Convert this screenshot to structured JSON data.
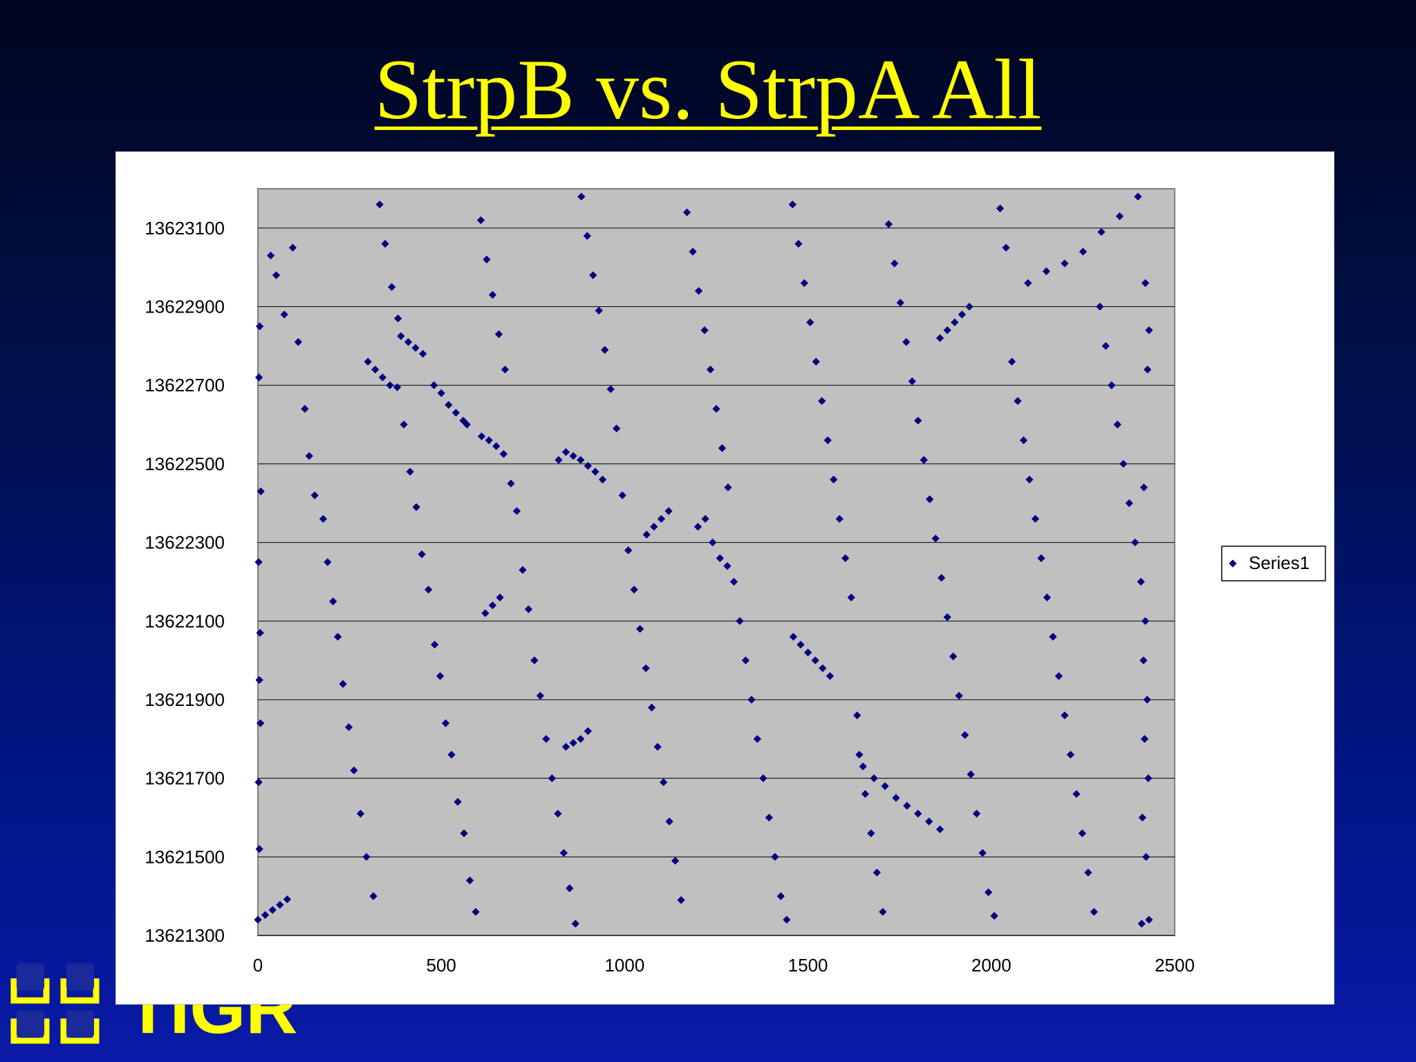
{
  "slide": {
    "title": "StrpB vs. StrpA All"
  },
  "logo": {
    "text": "TIGR"
  },
  "colors": {
    "title": "#ffff00",
    "plot_area": "#c0c0c0",
    "marker": "#000080",
    "gridline": "#000000"
  },
  "chart_data": {
    "type": "scatter",
    "title": "",
    "xlabel": "",
    "ylabel": "",
    "xlim": [
      0,
      2500
    ],
    "ylim": [
      13621300,
      13623200
    ],
    "x_ticks": [
      "0",
      "500",
      "1000",
      "1500",
      "2000",
      "2500"
    ],
    "y_ticks": [
      "13621300",
      "13621500",
      "13621700",
      "13621900",
      "13622100",
      "13622300",
      "13622500",
      "13622700",
      "13622900",
      "13623100"
    ],
    "grid": "horizontal major gridlines",
    "legend": {
      "position": "right",
      "entries": [
        "Series1"
      ]
    },
    "marker": "diamond",
    "series": [
      {
        "name": "Series1",
        "points": [
          [
            0,
            13621340
          ],
          [
            20,
            13621352
          ],
          [
            40,
            13621365
          ],
          [
            60,
            13621378
          ],
          [
            80,
            13621392
          ],
          [
            300,
            13622760
          ],
          [
            320,
            13622740
          ],
          [
            340,
            13622720
          ],
          [
            360,
            13622700
          ],
          [
            380,
            13622695
          ],
          [
            390,
            13622825
          ],
          [
            410,
            13622810
          ],
          [
            430,
            13622795
          ],
          [
            450,
            13622780
          ],
          [
            480,
            13622700
          ],
          [
            500,
            13622680
          ],
          [
            520,
            13622650
          ],
          [
            540,
            13622630
          ],
          [
            560,
            13622610
          ],
          [
            570,
            13622600
          ],
          [
            610,
            13622570
          ],
          [
            630,
            13622560
          ],
          [
            650,
            13622545
          ],
          [
            670,
            13622525
          ],
          [
            820,
            13622510
          ],
          [
            840,
            13622530
          ],
          [
            860,
            13622520
          ],
          [
            880,
            13622510
          ],
          [
            900,
            13622495
          ],
          [
            920,
            13622480
          ],
          [
            940,
            13622460
          ],
          [
            1060,
            13622320
          ],
          [
            1080,
            13622340
          ],
          [
            1100,
            13622360
          ],
          [
            1120,
            13622380
          ],
          [
            1200,
            13622340
          ],
          [
            1220,
            13622360
          ],
          [
            1240,
            13622300
          ],
          [
            1260,
            13622260
          ],
          [
            1280,
            13622240
          ],
          [
            1460,
            13622060
          ],
          [
            1480,
            13622040
          ],
          [
            1500,
            13622020
          ],
          [
            1520,
            13622000
          ],
          [
            1540,
            13621980
          ],
          [
            1560,
            13621960
          ],
          [
            1650,
            13621730
          ],
          [
            1680,
            13621700
          ],
          [
            1710,
            13621680
          ],
          [
            1740,
            13621650
          ],
          [
            1770,
            13621630
          ],
          [
            1800,
            13621610
          ],
          [
            1830,
            13621590
          ],
          [
            1860,
            13621570
          ],
          [
            1860,
            13622820
          ],
          [
            1880,
            13622840
          ],
          [
            1900,
            13622860
          ],
          [
            1920,
            13622880
          ],
          [
            1940,
            13622900
          ],
          [
            2100,
            13622960
          ],
          [
            2150,
            13622990
          ],
          [
            2200,
            13623010
          ],
          [
            2250,
            13623040
          ],
          [
            2300,
            13623090
          ],
          [
            2350,
            13623130
          ],
          [
            2400,
            13623180
          ],
          [
            620,
            13622120
          ],
          [
            640,
            13622140
          ],
          [
            660,
            13622160
          ],
          [
            840,
            13621780
          ],
          [
            860,
            13621790
          ],
          [
            880,
            13621800
          ],
          [
            900,
            13621820
          ],
          [
            2410,
            13621330
          ],
          [
            2430,
            13621340
          ],
          [
            5,
            13622850
          ],
          [
            3,
            13622720
          ],
          [
            8,
            13622430
          ],
          [
            2,
            13622250
          ],
          [
            6,
            13622070
          ],
          [
            4,
            13621950
          ],
          [
            7,
            13621840
          ],
          [
            2,
            13621690
          ],
          [
            4,
            13621520
          ],
          [
            35,
            13623030
          ],
          [
            50,
            13622980
          ],
          [
            72,
            13622880
          ],
          [
            95,
            13623050
          ],
          [
            110,
            13622810
          ],
          [
            128,
            13622640
          ],
          [
            140,
            13622520
          ],
          [
            155,
            13622420
          ],
          [
            178,
            13622360
          ],
          [
            190,
            13622250
          ],
          [
            205,
            13622150
          ],
          [
            218,
            13622060
          ],
          [
            232,
            13621940
          ],
          [
            248,
            13621830
          ],
          [
            262,
            13621720
          ],
          [
            280,
            13621610
          ],
          [
            296,
            13621500
          ],
          [
            315,
            13621400
          ],
          [
            332,
            13623160
          ],
          [
            347,
            13623060
          ],
          [
            365,
            13622950
          ],
          [
            382,
            13622870
          ],
          [
            398,
            13622600
          ],
          [
            415,
            13622480
          ],
          [
            432,
            13622390
          ],
          [
            447,
            13622270
          ],
          [
            465,
            13622180
          ],
          [
            482,
            13622040
          ],
          [
            497,
            13621960
          ],
          [
            512,
            13621840
          ],
          [
            528,
            13621760
          ],
          [
            545,
            13621640
          ],
          [
            562,
            13621560
          ],
          [
            578,
            13621440
          ],
          [
            594,
            13621360
          ],
          [
            608,
            13623120
          ],
          [
            624,
            13623020
          ],
          [
            640,
            13622930
          ],
          [
            657,
            13622830
          ],
          [
            674,
            13622740
          ],
          [
            690,
            13622450
          ],
          [
            706,
            13622380
          ],
          [
            722,
            13622230
          ],
          [
            738,
            13622130
          ],
          [
            754,
            13622000
          ],
          [
            770,
            13621910
          ],
          [
            786,
            13621800
          ],
          [
            802,
            13621700
          ],
          [
            818,
            13621610
          ],
          [
            834,
            13621510
          ],
          [
            850,
            13621420
          ],
          [
            866,
            13621330
          ],
          [
            882,
            13623180
          ],
          [
            898,
            13623080
          ],
          [
            914,
            13622980
          ],
          [
            930,
            13622890
          ],
          [
            946,
            13622790
          ],
          [
            962,
            13622690
          ],
          [
            978,
            13622590
          ],
          [
            994,
            13622420
          ],
          [
            1010,
            13622280
          ],
          [
            1026,
            13622180
          ],
          [
            1042,
            13622080
          ],
          [
            1058,
            13621980
          ],
          [
            1074,
            13621880
          ],
          [
            1090,
            13621780
          ],
          [
            1106,
            13621690
          ],
          [
            1122,
            13621590
          ],
          [
            1138,
            13621490
          ],
          [
            1154,
            13621390
          ],
          [
            1170,
            13623140
          ],
          [
            1186,
            13623040
          ],
          [
            1202,
            13622940
          ],
          [
            1218,
            13622840
          ],
          [
            1234,
            13622740
          ],
          [
            1250,
            13622640
          ],
          [
            1266,
            13622540
          ],
          [
            1282,
            13622440
          ],
          [
            1298,
            13622200
          ],
          [
            1314,
            13622100
          ],
          [
            1330,
            13622000
          ],
          [
            1346,
            13621900
          ],
          [
            1362,
            13621800
          ],
          [
            1378,
            13621700
          ],
          [
            1394,
            13621600
          ],
          [
            1410,
            13621500
          ],
          [
            1426,
            13621400
          ],
          [
            1442,
            13621340
          ],
          [
            1458,
            13623160
          ],
          [
            1474,
            13623060
          ],
          [
            1490,
            13622960
          ],
          [
            1506,
            13622860
          ],
          [
            1522,
            13622760
          ],
          [
            1538,
            13622660
          ],
          [
            1554,
            13622560
          ],
          [
            1570,
            13622460
          ],
          [
            1586,
            13622360
          ],
          [
            1602,
            13622260
          ],
          [
            1618,
            13622160
          ],
          [
            1634,
            13621860
          ],
          [
            1640,
            13621760
          ],
          [
            1656,
            13621660
          ],
          [
            1672,
            13621560
          ],
          [
            1688,
            13621460
          ],
          [
            1704,
            13621360
          ],
          [
            1720,
            13623110
          ],
          [
            1736,
            13623010
          ],
          [
            1752,
            13622910
          ],
          [
            1768,
            13622810
          ],
          [
            1784,
            13622710
          ],
          [
            1800,
            13622610
          ],
          [
            1816,
            13622510
          ],
          [
            1832,
            13622410
          ],
          [
            1848,
            13622310
          ],
          [
            1864,
            13622210
          ],
          [
            1880,
            13622110
          ],
          [
            1896,
            13622010
          ],
          [
            1912,
            13621910
          ],
          [
            1928,
            13621810
          ],
          [
            1944,
            13621710
          ],
          [
            1960,
            13621610
          ],
          [
            1976,
            13621510
          ],
          [
            1992,
            13621410
          ],
          [
            2008,
            13621350
          ],
          [
            2024,
            13623150
          ],
          [
            2040,
            13623050
          ],
          [
            2056,
            13622760
          ],
          [
            2072,
            13622660
          ],
          [
            2088,
            13622560
          ],
          [
            2104,
            13622460
          ],
          [
            2120,
            13622360
          ],
          [
            2136,
            13622260
          ],
          [
            2152,
            13622160
          ],
          [
            2168,
            13622060
          ],
          [
            2184,
            13621960
          ],
          [
            2200,
            13621860
          ],
          [
            2216,
            13621760
          ],
          [
            2232,
            13621660
          ],
          [
            2248,
            13621560
          ],
          [
            2264,
            13621460
          ],
          [
            2280,
            13621360
          ],
          [
            2296,
            13622900
          ],
          [
            2312,
            13622800
          ],
          [
            2328,
            13622700
          ],
          [
            2344,
            13622600
          ],
          [
            2360,
            13622500
          ],
          [
            2376,
            13622400
          ],
          [
            2392,
            13622300
          ],
          [
            2408,
            13622200
          ],
          [
            2420,
            13622100
          ],
          [
            2415,
            13622000
          ],
          [
            2425,
            13621900
          ],
          [
            2418,
            13621800
          ],
          [
            2428,
            13621700
          ],
          [
            2412,
            13621600
          ],
          [
            2422,
            13621500
          ],
          [
            2430,
            13622840
          ],
          [
            2426,
            13622740
          ],
          [
            2416,
            13622440
          ],
          [
            2420,
            13622960
          ]
        ]
      }
    ]
  }
}
